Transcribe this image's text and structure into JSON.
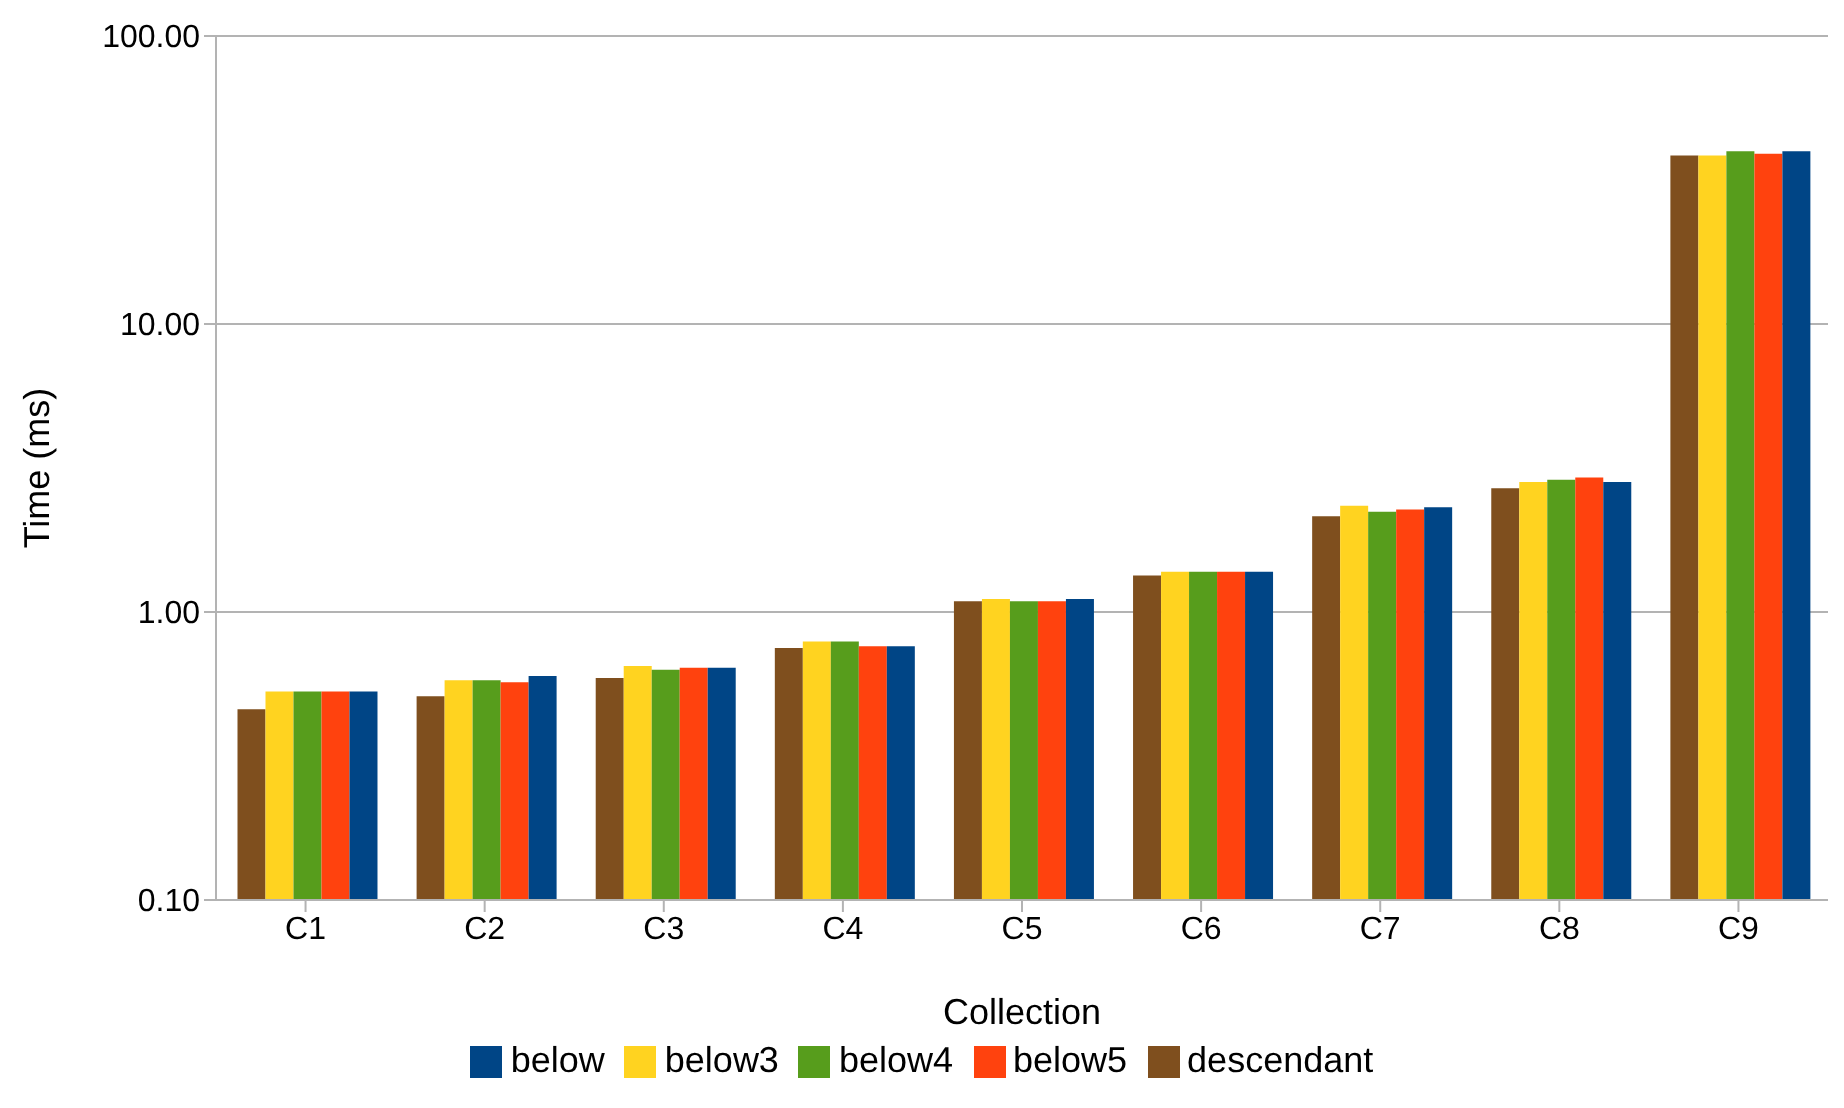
{
  "chart_data": {
    "type": "bar",
    "xlabel": "Collection",
    "ylabel": "Time (ms)",
    "categories": [
      "C1",
      "C2",
      "C3",
      "C4",
      "C5",
      "C6",
      "C7",
      "C8",
      "C9"
    ],
    "series": [
      {
        "name": "descendant",
        "color": "#7f4f1e",
        "values": [
          0.46,
          0.51,
          0.59,
          0.75,
          1.09,
          1.34,
          2.15,
          2.69,
          38.5
        ]
      },
      {
        "name": "below3",
        "color": "#ffd320",
        "values": [
          0.53,
          0.58,
          0.65,
          0.79,
          1.11,
          1.38,
          2.34,
          2.83,
          38.5
        ]
      },
      {
        "name": "below4",
        "color": "#579d1c",
        "values": [
          0.53,
          0.58,
          0.63,
          0.79,
          1.09,
          1.38,
          2.23,
          2.88,
          39.8
        ]
      },
      {
        "name": "below5",
        "color": "#ff420e",
        "values": [
          0.53,
          0.57,
          0.64,
          0.76,
          1.09,
          1.38,
          2.27,
          2.93,
          39
        ]
      },
      {
        "name": "below",
        "color": "#004586",
        "values": [
          0.53,
          0.6,
          0.64,
          0.76,
          1.11,
          1.38,
          2.31,
          2.83,
          39.8
        ]
      }
    ],
    "log": "y",
    "ylim": [
      0.1,
      100
    ],
    "yticks": [
      {
        "value": 0.1,
        "label": "0.10"
      },
      {
        "value": 1,
        "label": "1.00"
      },
      {
        "value": 10,
        "label": "10.00"
      },
      {
        "value": 100,
        "label": "100.00"
      }
    ],
    "grid": "y",
    "legend": "bottom"
  }
}
